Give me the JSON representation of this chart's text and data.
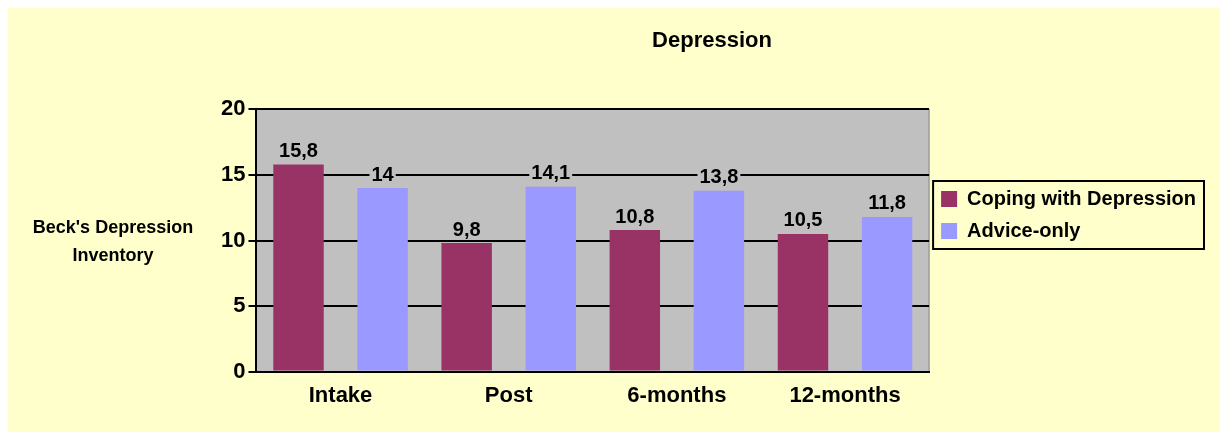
{
  "chart_data": {
    "type": "bar",
    "title": "Depression",
    "ylabel": "Beck's Depression Inventory",
    "categories": [
      "Intake",
      "Post",
      "6-months",
      "12-months"
    ],
    "series": [
      {
        "name": "Coping with Depression",
        "color": "#993366",
        "values": [
          15.8,
          9.8,
          10.8,
          10.5
        ],
        "value_labels": [
          "15,8",
          "9,8",
          "10,8",
          "10,5"
        ]
      },
      {
        "name": "Advice-only",
        "color": "#9999ff",
        "values": [
          14,
          14.1,
          13.8,
          11.8
        ],
        "value_labels": [
          "14",
          "14,1",
          "13,8",
          "11,8"
        ]
      }
    ],
    "ylim": [
      0,
      20
    ],
    "yticks": [
      0,
      5,
      10,
      15,
      20
    ],
    "grid": "y",
    "legend": "right"
  }
}
